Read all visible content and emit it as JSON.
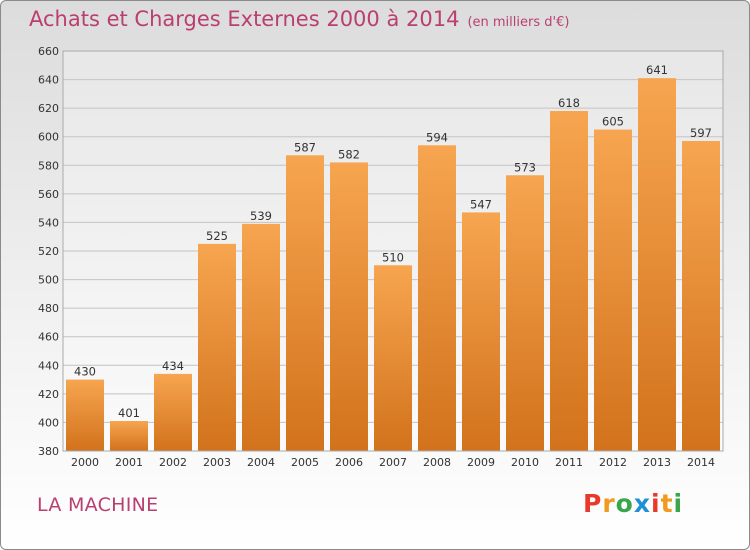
{
  "header": {
    "title": "Achats et Charges Externes 2000 à 2014",
    "subtitle": "(en milliers d'€)"
  },
  "footer": {
    "town": "LA MACHINE",
    "logo_text": "Proxiti"
  },
  "colors": {
    "title": "#ba3f70",
    "bar_top": "#f7a550",
    "bar_bottom": "#d2721c",
    "logo": [
      "#e8392a",
      "#f19a1e",
      "#3aa64a",
      "#1f8fd6",
      "#e8392a",
      "#f19a1e",
      "#3aa64a"
    ]
  },
  "chart_data": {
    "type": "bar",
    "categories": [
      "2000",
      "2001",
      "2002",
      "2003",
      "2004",
      "2005",
      "2006",
      "2007",
      "2008",
      "2009",
      "2010",
      "2011",
      "2012",
      "2013",
      "2014"
    ],
    "values": [
      430,
      401,
      434,
      525,
      539,
      587,
      582,
      510,
      594,
      547,
      573,
      618,
      605,
      641,
      597
    ],
    "ylim": [
      380,
      660
    ],
    "yticks": [
      380,
      400,
      420,
      440,
      460,
      480,
      500,
      520,
      540,
      560,
      580,
      600,
      620,
      640,
      660
    ],
    "grid": true,
    "legend": "none"
  }
}
